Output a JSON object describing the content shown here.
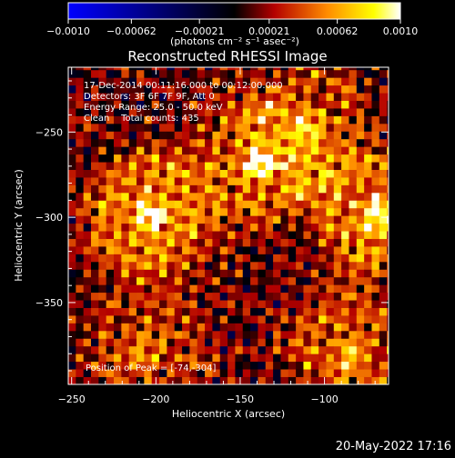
{
  "chart_data": {
    "type": "heatmap",
    "title": "Reconstructed RHESSI Image",
    "xlabel": "Heliocentric X (arcsec)",
    "ylabel": "Heliocentric Y (arcsec)",
    "xlim": [
      -252,
      -62
    ],
    "ylim": [
      -398,
      -212
    ],
    "x_ticks": [
      -250,
      -200,
      -150,
      -100
    ],
    "x_tick_labels": [
      "−250",
      "−200",
      "−150",
      "−100"
    ],
    "y_ticks": [
      -250,
      -300,
      -350
    ],
    "y_tick_labels": [
      "−250",
      "−300",
      "−350"
    ],
    "colorbar": {
      "range": [
        -0.001,
        0.001
      ],
      "ticks": [
        -0.001,
        -0.00062,
        -0.00021,
        0.00021,
        0.00062,
        0.001
      ],
      "tick_labels": [
        "−0.0010",
        "−0.00062",
        "−0.00021",
        "0.00021",
        "0.00062",
        "0.0010"
      ],
      "units_label": "(photons cm⁻² s⁻¹ asec⁻²)",
      "colormap": [
        "#0000ff",
        "#000000",
        "#b40000",
        "#ff8c00",
        "#ffff00",
        "#ffffff"
      ]
    },
    "annotations": [
      "17-Dec-2014 00:11:16.000 to 00:12:00.000",
      "Detectors: 3F 6F 7F 9F, Att 0",
      "Energy Range: 25.0 - 50.0 keV",
      "Clean    Total counts: 435",
      "Position of Peak = [-74,-304]"
    ],
    "sources": [
      {
        "x": -204,
        "y": -298,
        "strength": 0.00092
      },
      {
        "x": -138,
        "y": -268,
        "strength": 0.00068
      },
      {
        "x": -68,
        "y": -297,
        "strength": 0.00085
      },
      {
        "x": -110,
        "y": -246,
        "strength": 0.00052
      },
      {
        "x": -85,
        "y": -380,
        "strength": 0.0006
      },
      {
        "x": -205,
        "y": -378,
        "strength": 0.00045
      }
    ],
    "background_level": 0.00012,
    "peak_position": [
      -74,
      -304
    ],
    "timestamp": "20-May-2022 17:16"
  }
}
